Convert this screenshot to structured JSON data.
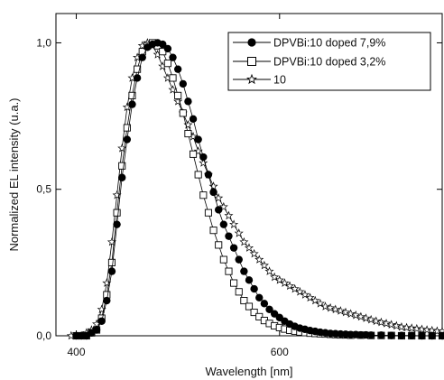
{
  "chart_data": {
    "type": "scatter",
    "title": "",
    "xlabel": "Wavelength [nm]",
    "ylabel": "Normalized EL intensity (u.a.)",
    "xlim": [
      380,
      760
    ],
    "ylim": [
      0,
      1.1
    ],
    "x_ticks": [
      400,
      600
    ],
    "x_tick_labels": [
      "400",
      "600"
    ],
    "y_ticks": [
      0,
      0.5,
      1.0
    ],
    "y_tick_labels": [
      "0,0",
      "0,5",
      "1,0"
    ],
    "grid": false,
    "legend_position": "top-right",
    "series": [
      {
        "name": "DPVBi:10 doped 7,9%",
        "marker": "filled-circle",
        "color": "#000000",
        "x": [
          400,
          405,
          410,
          415,
          420,
          425,
          430,
          435,
          440,
          445,
          450,
          455,
          460,
          465,
          470,
          475,
          480,
          485,
          490,
          495,
          500,
          505,
          510,
          515,
          520,
          525,
          530,
          535,
          540,
          545,
          550,
          555,
          560,
          565,
          570,
          575,
          580,
          585,
          590,
          595,
          600,
          605,
          610,
          615,
          620,
          625,
          630,
          635,
          640,
          645,
          650,
          655,
          660,
          665,
          670,
          675,
          680,
          685,
          690,
          700,
          710,
          720,
          730,
          740,
          750,
          760
        ],
        "y": [
          0.0,
          0.0,
          0.0,
          0.01,
          0.02,
          0.05,
          0.12,
          0.22,
          0.38,
          0.54,
          0.67,
          0.79,
          0.88,
          0.95,
          0.985,
          0.995,
          1.0,
          0.995,
          0.98,
          0.95,
          0.91,
          0.86,
          0.8,
          0.74,
          0.67,
          0.61,
          0.55,
          0.49,
          0.43,
          0.38,
          0.34,
          0.3,
          0.26,
          0.22,
          0.19,
          0.16,
          0.13,
          0.11,
          0.09,
          0.075,
          0.062,
          0.05,
          0.04,
          0.032,
          0.026,
          0.022,
          0.018,
          0.015,
          0.012,
          0.01,
          0.008,
          0.007,
          0.006,
          0.005,
          0.004,
          0.004,
          0.003,
          0.003,
          0.002,
          0.002,
          0.001,
          0.001,
          0.001,
          0.0,
          0.0,
          0.0
        ]
      },
      {
        "name": "DPVBi:10 doped 3,2%",
        "marker": "open-square",
        "color": "#000000",
        "x": [
          400,
          405,
          410,
          415,
          420,
          425,
          430,
          435,
          440,
          445,
          450,
          455,
          460,
          465,
          470,
          475,
          480,
          485,
          490,
          495,
          500,
          505,
          510,
          515,
          520,
          525,
          530,
          535,
          540,
          545,
          550,
          555,
          560,
          565,
          570,
          575,
          580,
          585,
          590,
          595,
          600,
          605,
          610,
          615,
          620,
          625,
          630,
          635,
          640,
          645,
          650,
          655,
          660,
          665,
          670,
          680,
          690,
          700,
          710,
          720,
          730,
          740,
          750,
          760
        ],
        "y": [
          0.0,
          0.0,
          0.0,
          0.01,
          0.02,
          0.06,
          0.14,
          0.25,
          0.42,
          0.58,
          0.71,
          0.82,
          0.91,
          0.97,
          0.99,
          1.0,
          0.99,
          0.97,
          0.93,
          0.88,
          0.82,
          0.76,
          0.69,
          0.62,
          0.55,
          0.48,
          0.42,
          0.36,
          0.31,
          0.26,
          0.22,
          0.18,
          0.15,
          0.12,
          0.1,
          0.08,
          0.065,
          0.052,
          0.042,
          0.034,
          0.028,
          0.023,
          0.019,
          0.016,
          0.013,
          0.011,
          0.009,
          0.008,
          0.007,
          0.006,
          0.005,
          0.004,
          0.003,
          0.003,
          0.002,
          0.002,
          0.001,
          0.001,
          0.001,
          0.0,
          0.0,
          0.0,
          0.0,
          0.0
        ]
      },
      {
        "name": "10",
        "marker": "open-star",
        "color": "#000000",
        "x": [
          395,
          400,
          405,
          410,
          415,
          420,
          425,
          430,
          435,
          440,
          445,
          450,
          455,
          460,
          465,
          470,
          475,
          480,
          485,
          490,
          495,
          500,
          505,
          510,
          515,
          520,
          525,
          530,
          535,
          540,
          545,
          550,
          555,
          560,
          565,
          570,
          575,
          580,
          585,
          590,
          595,
          600,
          605,
          610,
          615,
          620,
          625,
          630,
          635,
          640,
          645,
          650,
          655,
          660,
          665,
          670,
          675,
          680,
          685,
          690,
          695,
          700,
          705,
          710,
          715,
          720,
          725,
          730,
          735,
          740,
          745,
          750,
          755,
          760
        ],
        "y": [
          0.0,
          0.0,
          0.0,
          0.01,
          0.02,
          0.04,
          0.09,
          0.18,
          0.32,
          0.48,
          0.64,
          0.78,
          0.88,
          0.95,
          0.99,
          1.0,
          0.99,
          0.96,
          0.92,
          0.88,
          0.84,
          0.8,
          0.76,
          0.72,
          0.68,
          0.63,
          0.59,
          0.55,
          0.51,
          0.47,
          0.44,
          0.41,
          0.38,
          0.35,
          0.32,
          0.3,
          0.28,
          0.26,
          0.24,
          0.22,
          0.2,
          0.19,
          0.18,
          0.17,
          0.16,
          0.15,
          0.14,
          0.13,
          0.12,
          0.11,
          0.1,
          0.095,
          0.09,
          0.085,
          0.08,
          0.075,
          0.07,
          0.065,
          0.06,
          0.055,
          0.05,
          0.046,
          0.042,
          0.038,
          0.034,
          0.03,
          0.028,
          0.026,
          0.024,
          0.022,
          0.02,
          0.018,
          0.016,
          0.015
        ]
      }
    ]
  }
}
